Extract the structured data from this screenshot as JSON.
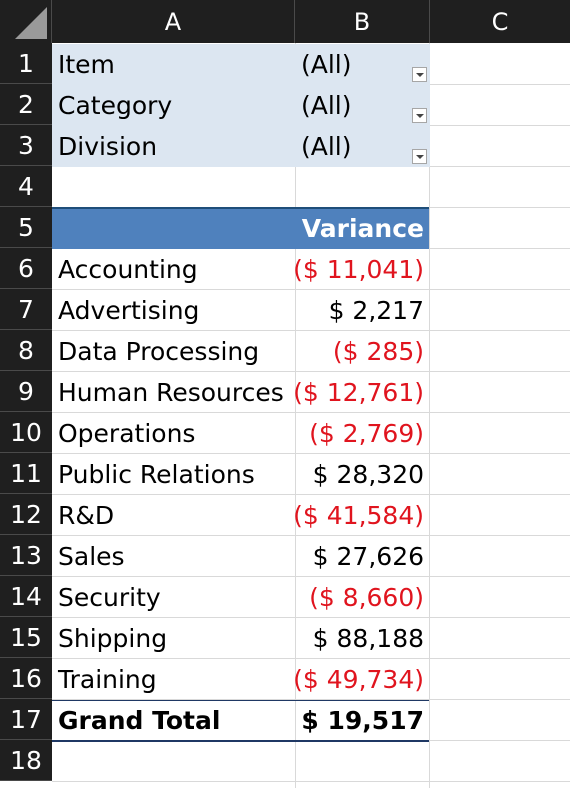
{
  "columns": [
    "A",
    "B",
    "C"
  ],
  "rows": [
    "1",
    "2",
    "3",
    "4",
    "5",
    "6",
    "7",
    "8",
    "9",
    "10",
    "11",
    "12",
    "13",
    "14",
    "15",
    "16",
    "17",
    "18"
  ],
  "filters": [
    {
      "label": "Item",
      "value": "(All)"
    },
    {
      "label": "Category",
      "value": "(All)"
    },
    {
      "label": "Division",
      "value": "(All)"
    }
  ],
  "pivot": {
    "value_header": "Variance",
    "rows": [
      {
        "label": "Accounting",
        "value": "($ 11,041)",
        "negative": true
      },
      {
        "label": "Advertising",
        "value": "$ 2,217",
        "negative": false
      },
      {
        "label": "Data Processing",
        "value": "($ 285)",
        "negative": true
      },
      {
        "label": "Human Resources",
        "value": "($ 12,761)",
        "negative": true
      },
      {
        "label": "Operations",
        "value": "($ 2,769)",
        "negative": true
      },
      {
        "label": "Public Relations",
        "value": "$ 28,320",
        "negative": false
      },
      {
        "label": "R&D",
        "value": "($ 41,584)",
        "negative": true
      },
      {
        "label": "Sales",
        "value": "$ 27,626",
        "negative": false
      },
      {
        "label": "Security",
        "value": "($ 8,660)",
        "negative": true
      },
      {
        "label": "Shipping",
        "value": "$ 88,188",
        "negative": false
      },
      {
        "label": "Training",
        "value": "($ 49,734)",
        "negative": true
      }
    ],
    "grand_total_label": "Grand Total",
    "grand_total_value": "$ 19,517"
  },
  "colors": {
    "header_bg": "#1f1f1f",
    "filter_bg": "#dce6f1",
    "pivot_header_bg": "#4f81bd",
    "negative": "#e0141e"
  }
}
